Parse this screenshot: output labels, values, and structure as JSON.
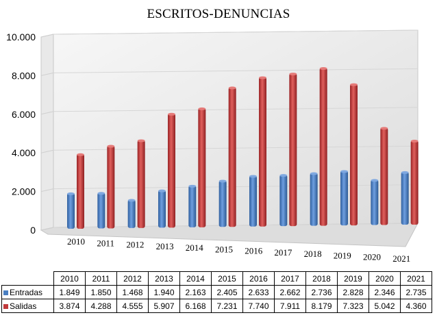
{
  "chart_data": {
    "type": "bar",
    "title": "ESCRITOS-DENUNCIAS",
    "categories": [
      "2010",
      "2011",
      "2012",
      "2013",
      "2014",
      "2015",
      "2016",
      "2017",
      "2018",
      "2019",
      "2020",
      "2021"
    ],
    "series": [
      {
        "name": "Entradas",
        "color": "#4a7fc1",
        "values": [
          1849,
          1850,
          1468,
          1940,
          2163,
          2405,
          2633,
          2662,
          2736,
          2828,
          2346,
          2735
        ],
        "labels": [
          "1.849",
          "1.850",
          "1.468",
          "1.940",
          "2.163",
          "2.405",
          "2.633",
          "2.662",
          "2.736",
          "2.828",
          "2.346",
          "2.735"
        ]
      },
      {
        "name": "Salidas",
        "color": "#c0393b",
        "values": [
          3874,
          4288,
          4555,
          5907,
          6168,
          7231,
          7740,
          7911,
          8179,
          7323,
          5042,
          4360
        ],
        "labels": [
          "3.874",
          "4.288",
          "4.555",
          "5.907",
          "6.168",
          "7.231",
          "7.740",
          "7.911",
          "8.179",
          "7.323",
          "5.042",
          "4.360"
        ]
      }
    ],
    "ylim": [
      0,
      10000
    ],
    "yticks": [
      0,
      2000,
      4000,
      6000,
      8000,
      10000
    ],
    "ytick_labels": [
      "0",
      "2.000",
      "4.000",
      "6.000",
      "8.000",
      "10.000"
    ],
    "grid": true,
    "legend": "data-table-below"
  }
}
